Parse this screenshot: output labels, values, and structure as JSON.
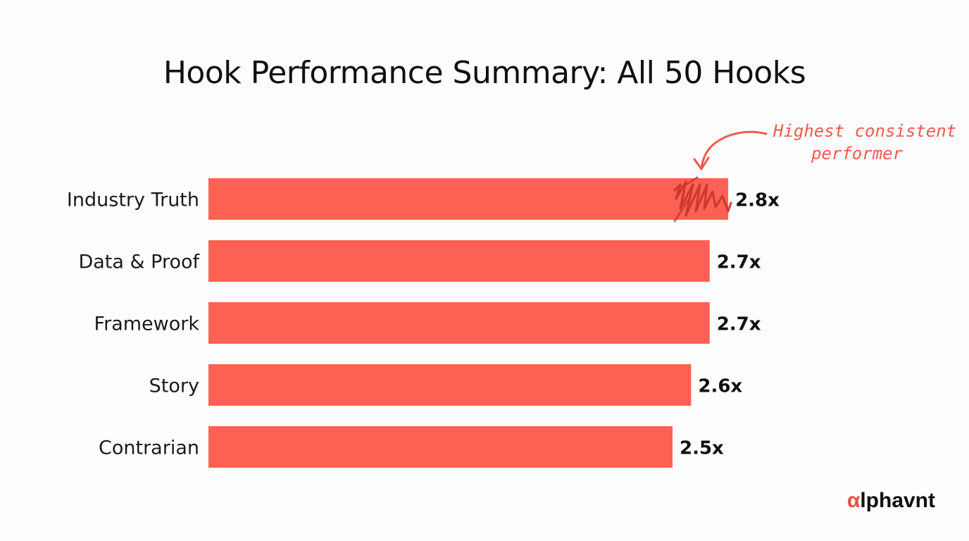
{
  "chart_data": {
    "type": "bar",
    "orientation": "horizontal",
    "title": "Hook Performance Summary: All 50 Hooks",
    "categories": [
      "Industry Truth",
      "Data & Proof",
      "Framework",
      "Story",
      "Contrarian"
    ],
    "values": [
      2.8,
      2.7,
      2.7,
      2.6,
      2.5
    ],
    "value_labels": [
      "2.8x",
      "2.7x",
      "2.7x",
      "2.6x",
      "2.5x"
    ],
    "xlabel": "",
    "ylabel": "",
    "grid": false,
    "bar_color": "#fd6154",
    "annotation": {
      "target_category": "Industry Truth",
      "lines": [
        "Highest consistent",
        "performer"
      ],
      "color": "#ef5a4e"
    }
  },
  "brand": {
    "accent": "α",
    "rest": "lphavnt"
  }
}
